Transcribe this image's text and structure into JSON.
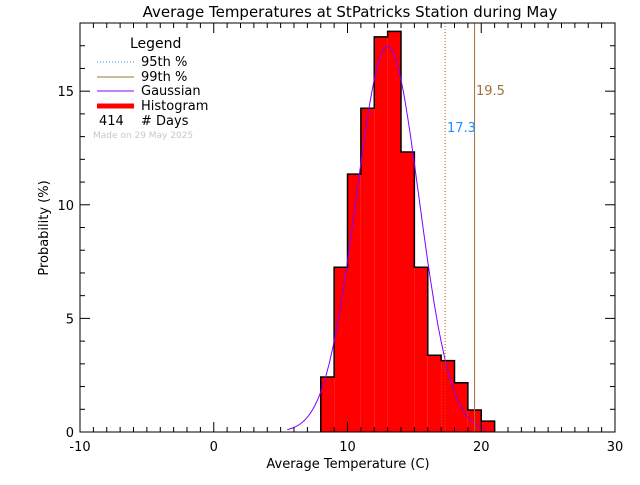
{
  "chart_data": {
    "type": "bar",
    "title": "Average Temperatures at StPatricks Station during May",
    "xlabel": "Average Temperature (C)",
    "ylabel": "Probability  (%)",
    "xlim": [
      -10,
      30
    ],
    "ylim": [
      0,
      18
    ],
    "xticks": [
      -10,
      0,
      10,
      20,
      30
    ],
    "yticks": [
      0,
      5,
      10,
      15
    ],
    "bin_edges": [
      8,
      9,
      10,
      11,
      12,
      13,
      14,
      15,
      16,
      17,
      18,
      19,
      20,
      21
    ],
    "values": [
      2.42,
      7.25,
      11.35,
      14.25,
      17.39,
      17.63,
      12.32,
      7.25,
      3.38,
      3.14,
      2.17,
      0.97,
      0.48
    ],
    "gaussian": {
      "mean": 13.0,
      "sigma": 2.35
    },
    "p95": {
      "value": 17.3,
      "label": "17.3"
    },
    "p99": {
      "value": 19.5,
      "label": "19.5"
    },
    "legend": {
      "title": "Legend",
      "p95": "95th %",
      "p99": "99th %",
      "gaussian": "Gaussian",
      "histogram": "Histogram",
      "days_count": "414",
      "days_label": "# Days",
      "made_on": "Made on 29 May 2025"
    },
    "colors": {
      "histogram": "#ff0000",
      "gaussian": "#8000ff",
      "p95_line": "#c06000",
      "p95_text": "#1e90ff",
      "p99": "#a0703a",
      "legend_p95": "#1e90ff"
    }
  }
}
